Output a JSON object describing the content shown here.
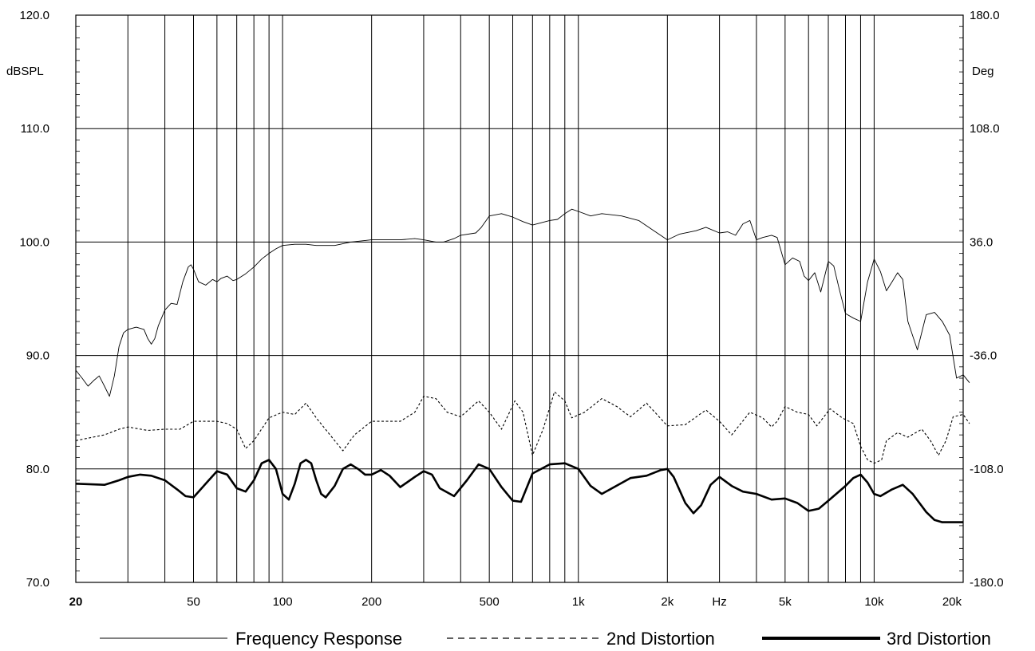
{
  "chart_data": {
    "type": "line",
    "x_scale": "log",
    "xlim": [
      20,
      20000
    ],
    "ylim": [
      70,
      120
    ],
    "y2lim": [
      -180,
      180
    ],
    "ylabel": "dBSPL",
    "y2label": "Deg",
    "xunit": "Hz",
    "grid": true,
    "legend_position": "bottom",
    "y_ticks": [
      "120.0",
      "110.0",
      "100.0",
      "90.0",
      "80.0",
      "70.0"
    ],
    "y2_ticks": [
      "180.0",
      "108.0",
      "36.0",
      "-36.0",
      "-108.0",
      "-180.0"
    ],
    "x_ticks": [
      {
        "v": 20,
        "label": "20"
      },
      {
        "v": 50,
        "label": "50"
      },
      {
        "v": 100,
        "label": "100"
      },
      {
        "v": 200,
        "label": "200"
      },
      {
        "v": 500,
        "label": "500"
      },
      {
        "v": 1000,
        "label": "1k"
      },
      {
        "v": 2000,
        "label": "2k"
      },
      {
        "v": 5000,
        "label": "5k"
      },
      {
        "v": 10000,
        "label": "10k"
      },
      {
        "v": 20000,
        "label": "20k"
      }
    ],
    "series": [
      {
        "name": "Frequency Response",
        "style": "solid-thin",
        "points": [
          [
            20,
            88.7
          ],
          [
            21,
            88.0
          ],
          [
            22,
            87.3
          ],
          [
            23,
            87.8
          ],
          [
            24,
            88.2
          ],
          [
            25,
            87.3
          ],
          [
            26,
            86.4
          ],
          [
            27,
            88.2
          ],
          [
            28,
            90.8
          ],
          [
            29,
            92.0
          ],
          [
            30,
            92.3
          ],
          [
            32,
            92.5
          ],
          [
            34,
            92.3
          ],
          [
            35,
            91.5
          ],
          [
            36,
            91.0
          ],
          [
            37,
            91.5
          ],
          [
            38,
            92.6
          ],
          [
            40,
            94.0
          ],
          [
            42,
            94.6
          ],
          [
            44,
            94.5
          ],
          [
            46,
            96.5
          ],
          [
            48,
            97.8
          ],
          [
            49,
            98.0
          ],
          [
            50,
            97.6
          ],
          [
            52,
            96.5
          ],
          [
            55,
            96.2
          ],
          [
            58,
            96.7
          ],
          [
            60,
            96.5
          ],
          [
            62,
            96.8
          ],
          [
            65,
            97.0
          ],
          [
            68,
            96.6
          ],
          [
            70,
            96.7
          ],
          [
            75,
            97.2
          ],
          [
            80,
            97.8
          ],
          [
            85,
            98.5
          ],
          [
            90,
            99.0
          ],
          [
            95,
            99.4
          ],
          [
            100,
            99.7
          ],
          [
            110,
            99.8
          ],
          [
            120,
            99.8
          ],
          [
            130,
            99.7
          ],
          [
            150,
            99.7
          ],
          [
            170,
            100.0
          ],
          [
            200,
            100.2
          ],
          [
            250,
            100.2
          ],
          [
            280,
            100.3
          ],
          [
            300,
            100.2
          ],
          [
            330,
            100.0
          ],
          [
            350,
            100.0
          ],
          [
            380,
            100.3
          ],
          [
            400,
            100.6
          ],
          [
            450,
            100.8
          ],
          [
            470,
            101.3
          ],
          [
            500,
            102.3
          ],
          [
            550,
            102.5
          ],
          [
            600,
            102.2
          ],
          [
            650,
            101.8
          ],
          [
            700,
            101.5
          ],
          [
            800,
            101.9
          ],
          [
            850,
            102.0
          ],
          [
            900,
            102.5
          ],
          [
            950,
            102.9
          ],
          [
            1000,
            102.7
          ],
          [
            1100,
            102.3
          ],
          [
            1200,
            102.5
          ],
          [
            1400,
            102.3
          ],
          [
            1600,
            101.9
          ],
          [
            1800,
            101.0
          ],
          [
            2000,
            100.2
          ],
          [
            2200,
            100.7
          ],
          [
            2500,
            101.0
          ],
          [
            2700,
            101.3
          ],
          [
            3000,
            100.8
          ],
          [
            3200,
            100.9
          ],
          [
            3400,
            100.6
          ],
          [
            3600,
            101.6
          ],
          [
            3800,
            101.9
          ],
          [
            4000,
            100.2
          ],
          [
            4200,
            100.4
          ],
          [
            4500,
            100.6
          ],
          [
            4700,
            100.4
          ],
          [
            5000,
            98.0
          ],
          [
            5300,
            98.6
          ],
          [
            5600,
            98.3
          ],
          [
            5800,
            97.0
          ],
          [
            6000,
            96.6
          ],
          [
            6300,
            97.3
          ],
          [
            6600,
            95.6
          ],
          [
            7000,
            98.3
          ],
          [
            7300,
            97.9
          ],
          [
            7600,
            96.0
          ],
          [
            8000,
            93.7
          ],
          [
            8500,
            93.3
          ],
          [
            9000,
            93.0
          ],
          [
            9500,
            96.5
          ],
          [
            10000,
            98.5
          ],
          [
            10500,
            97.4
          ],
          [
            11000,
            95.7
          ],
          [
            11500,
            96.5
          ],
          [
            12000,
            97.3
          ],
          [
            12500,
            96.7
          ],
          [
            13000,
            93.0
          ],
          [
            14000,
            90.5
          ],
          [
            15000,
            93.6
          ],
          [
            16000,
            93.8
          ],
          [
            17000,
            93.0
          ],
          [
            18000,
            91.8
          ],
          [
            19000,
            88.0
          ],
          [
            20000,
            88.3
          ],
          [
            21000,
            87.6
          ]
        ]
      },
      {
        "name": "2nd Distortion",
        "style": "dashed",
        "points": [
          [
            20,
            82.5
          ],
          [
            25,
            83.0
          ],
          [
            28,
            83.5
          ],
          [
            30,
            83.7
          ],
          [
            35,
            83.4
          ],
          [
            40,
            83.5
          ],
          [
            45,
            83.5
          ],
          [
            50,
            84.2
          ],
          [
            55,
            84.2
          ],
          [
            60,
            84.2
          ],
          [
            65,
            84.0
          ],
          [
            70,
            83.5
          ],
          [
            75,
            81.8
          ],
          [
            80,
            82.5
          ],
          [
            90,
            84.5
          ],
          [
            100,
            85.0
          ],
          [
            110,
            84.8
          ],
          [
            120,
            85.8
          ],
          [
            130,
            84.5
          ],
          [
            150,
            82.5
          ],
          [
            160,
            81.6
          ],
          [
            175,
            83.0
          ],
          [
            200,
            84.2
          ],
          [
            250,
            84.2
          ],
          [
            280,
            85.0
          ],
          [
            300,
            86.4
          ],
          [
            330,
            86.2
          ],
          [
            360,
            85.0
          ],
          [
            400,
            84.6
          ],
          [
            460,
            86.0
          ],
          [
            500,
            85.0
          ],
          [
            550,
            83.5
          ],
          [
            610,
            86.0
          ],
          [
            650,
            85.0
          ],
          [
            700,
            81.2
          ],
          [
            760,
            83.5
          ],
          [
            830,
            86.8
          ],
          [
            900,
            86.0
          ],
          [
            950,
            84.5
          ],
          [
            1050,
            85.0
          ],
          [
            1200,
            86.2
          ],
          [
            1350,
            85.5
          ],
          [
            1500,
            84.6
          ],
          [
            1700,
            85.8
          ],
          [
            2000,
            83.8
          ],
          [
            2300,
            83.9
          ],
          [
            2700,
            85.2
          ],
          [
            3000,
            84.2
          ],
          [
            3300,
            83.0
          ],
          [
            3800,
            85.0
          ],
          [
            4200,
            84.5
          ],
          [
            4500,
            83.7
          ],
          [
            4700,
            84.2
          ],
          [
            5000,
            85.5
          ],
          [
            5500,
            85.0
          ],
          [
            6000,
            84.8
          ],
          [
            6400,
            83.8
          ],
          [
            7100,
            85.3
          ],
          [
            7800,
            84.5
          ],
          [
            8500,
            84.0
          ],
          [
            9000,
            82.0
          ],
          [
            9500,
            80.8
          ],
          [
            10000,
            80.5
          ],
          [
            10600,
            80.8
          ],
          [
            11000,
            82.5
          ],
          [
            12000,
            83.2
          ],
          [
            13000,
            82.8
          ],
          [
            14500,
            83.5
          ],
          [
            15500,
            82.5
          ],
          [
            16500,
            81.2
          ],
          [
            17500,
            82.5
          ],
          [
            18500,
            84.6
          ],
          [
            20000,
            84.8
          ],
          [
            21000,
            84.0
          ]
        ]
      },
      {
        "name": "3rd Distortion",
        "style": "solid-thick",
        "points": [
          [
            20,
            78.7
          ],
          [
            25,
            78.6
          ],
          [
            28,
            79.0
          ],
          [
            30,
            79.3
          ],
          [
            33,
            79.5
          ],
          [
            36,
            79.4
          ],
          [
            40,
            79.0
          ],
          [
            44,
            78.2
          ],
          [
            47,
            77.6
          ],
          [
            50,
            77.5
          ],
          [
            55,
            78.7
          ],
          [
            60,
            79.8
          ],
          [
            65,
            79.5
          ],
          [
            70,
            78.3
          ],
          [
            75,
            78.0
          ],
          [
            80,
            79.0
          ],
          [
            85,
            80.5
          ],
          [
            90,
            80.8
          ],
          [
            95,
            80.0
          ],
          [
            100,
            77.8
          ],
          [
            105,
            77.3
          ],
          [
            110,
            78.7
          ],
          [
            115,
            80.5
          ],
          [
            120,
            80.8
          ],
          [
            125,
            80.5
          ],
          [
            130,
            79.0
          ],
          [
            135,
            77.8
          ],
          [
            140,
            77.5
          ],
          [
            150,
            78.5
          ],
          [
            160,
            80.0
          ],
          [
            170,
            80.4
          ],
          [
            180,
            80.0
          ],
          [
            190,
            79.5
          ],
          [
            200,
            79.5
          ],
          [
            215,
            79.9
          ],
          [
            230,
            79.4
          ],
          [
            250,
            78.4
          ],
          [
            280,
            79.3
          ],
          [
            300,
            79.8
          ],
          [
            320,
            79.5
          ],
          [
            340,
            78.3
          ],
          [
            380,
            77.6
          ],
          [
            420,
            79.0
          ],
          [
            460,
            80.4
          ],
          [
            500,
            80.0
          ],
          [
            550,
            78.4
          ],
          [
            600,
            77.2
          ],
          [
            640,
            77.1
          ],
          [
            700,
            79.6
          ],
          [
            800,
            80.4
          ],
          [
            900,
            80.5
          ],
          [
            1000,
            80.0
          ],
          [
            1100,
            78.5
          ],
          [
            1200,
            77.8
          ],
          [
            1300,
            78.3
          ],
          [
            1500,
            79.2
          ],
          [
            1700,
            79.4
          ],
          [
            1900,
            79.9
          ],
          [
            2000,
            80.0
          ],
          [
            2100,
            79.3
          ],
          [
            2300,
            77.0
          ],
          [
            2450,
            76.1
          ],
          [
            2600,
            76.8
          ],
          [
            2800,
            78.6
          ],
          [
            3000,
            79.3
          ],
          [
            3300,
            78.5
          ],
          [
            3600,
            78.0
          ],
          [
            4000,
            77.8
          ],
          [
            4500,
            77.3
          ],
          [
            5000,
            77.4
          ],
          [
            5500,
            77.0
          ],
          [
            6000,
            76.3
          ],
          [
            6500,
            76.5
          ],
          [
            7000,
            77.2
          ],
          [
            8000,
            78.5
          ],
          [
            8500,
            79.2
          ],
          [
            9000,
            79.5
          ],
          [
            9500,
            78.8
          ],
          [
            10000,
            77.8
          ],
          [
            10500,
            77.6
          ],
          [
            11500,
            78.2
          ],
          [
            12500,
            78.6
          ],
          [
            13500,
            77.8
          ],
          [
            15000,
            76.2
          ],
          [
            16000,
            75.5
          ],
          [
            17000,
            75.3
          ],
          [
            18000,
            75.3
          ],
          [
            20000,
            75.3
          ]
        ]
      }
    ]
  }
}
